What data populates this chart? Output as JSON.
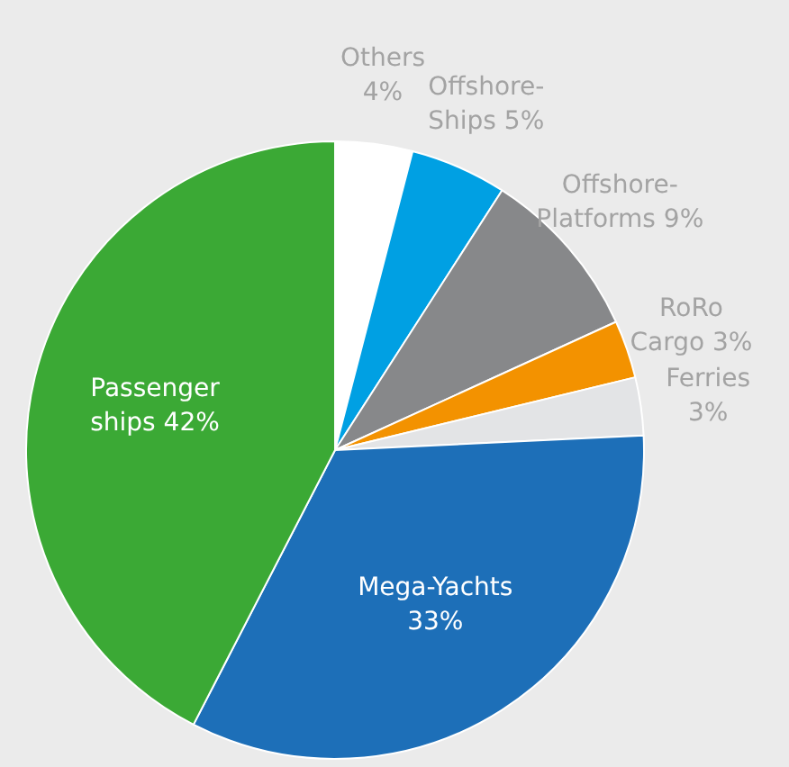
{
  "chart_data": {
    "type": "pie",
    "categories": [
      "Others",
      "Offshore-Ships",
      "Offshore-Platforms",
      "RoRo Cargo",
      "Ferries",
      "Mega-Yachts",
      "Passenger ships"
    ],
    "values": [
      4,
      5,
      9,
      3,
      3,
      33,
      42
    ],
    "colors": [
      "#ffffff",
      "#00a0e3",
      "#87888a",
      "#f39200",
      "#e3e4e6",
      "#1d6fb8",
      "#3ba935"
    ],
    "value_labels": [
      "4%",
      "5%",
      "9%",
      "3%",
      "3%",
      "33%",
      "42%"
    ],
    "legend": false
  }
}
